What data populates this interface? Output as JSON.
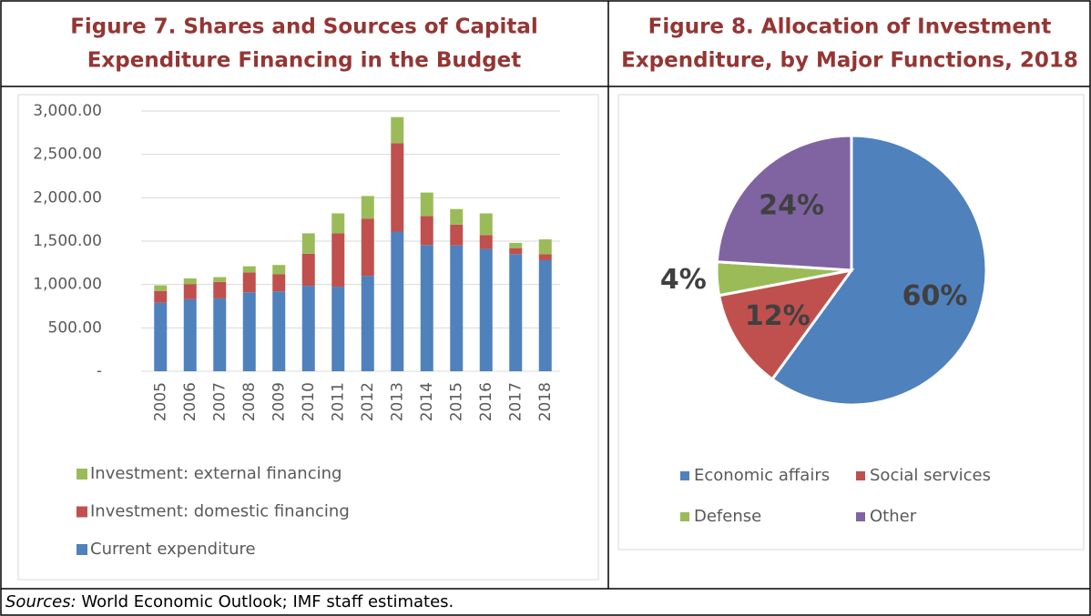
{
  "chart_data": [
    {
      "type": "stacked_bar",
      "title": [
        "Figure 7. Shares and Sources of Capital",
        "Expenditure Financing in the Budget"
      ],
      "categories": [
        "2005",
        "2006",
        "2007",
        "2008",
        "2009",
        "2010",
        "2011",
        "2012",
        "2013",
        "2014",
        "2015",
        "2016",
        "2017",
        "2018"
      ],
      "series": [
        {
          "name": "Current expenditure",
          "color": "#4f81bd",
          "values": [
            790,
            830,
            840,
            910,
            920,
            985,
            975,
            1100,
            1610,
            1455,
            1450,
            1410,
            1350,
            1280
          ]
        },
        {
          "name": "Investment: domestic financing",
          "color": "#c0504d",
          "values": [
            135,
            175,
            190,
            230,
            200,
            370,
            615,
            660,
            1020,
            335,
            240,
            160,
            70,
            70
          ]
        },
        {
          "name": "Investment: external financing",
          "color": "#9bbb59",
          "values": [
            65,
            65,
            55,
            70,
            105,
            235,
            230,
            260,
            300,
            270,
            180,
            250,
            60,
            170
          ]
        }
      ],
      "ylim": [
        0,
        3000
      ],
      "yticks": [
        {
          "value": 0,
          "label": "-"
        },
        {
          "value": 500,
          "label": "500.00"
        },
        {
          "value": 1000,
          "label": "1,000.00"
        },
        {
          "value": 1500,
          "label": "1,500.00"
        },
        {
          "value": 2000,
          "label": "2,000.00"
        },
        {
          "value": 2500,
          "label": "2,500.00"
        },
        {
          "value": 3000,
          "label": "3,000.00"
        }
      ],
      "grid": true,
      "legend": "bottom"
    },
    {
      "type": "pie",
      "title": [
        "Figure 8. Allocation of Investment",
        "Expenditure, by Major Functions, 2018"
      ],
      "categories": [
        "Economic affairs",
        "Social services",
        "Defense",
        "Other"
      ],
      "values": [
        60,
        12,
        4,
        24
      ],
      "value_labels": [
        "60%",
        "12%",
        "4%",
        "24%"
      ],
      "colors": [
        "#4f81bd",
        "#c0504d",
        "#9bbb59",
        "#8064a2"
      ],
      "legend": "bottom"
    }
  ],
  "source_label": "Sources:",
  "source_text": "World Economic Outlook; IMF staff estimates."
}
